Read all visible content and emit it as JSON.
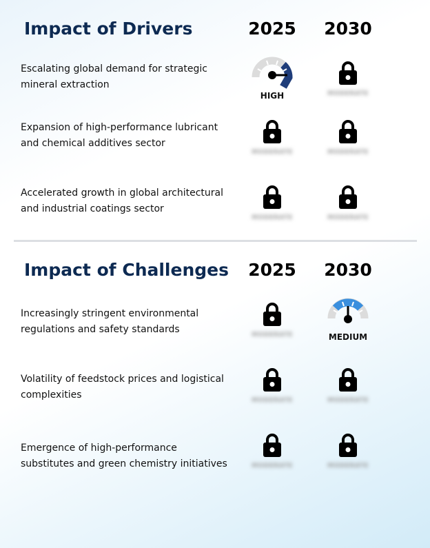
{
  "drivers": {
    "title": "Impact of Drivers",
    "year_1": "2025",
    "year_2": "2030",
    "rows": [
      {
        "text": "Escalating global demand for strategic mineral extraction",
        "cell_2025": {
          "type": "gauge",
          "level": "high",
          "label": "HIGH",
          "color": "#1f3d7a"
        },
        "cell_2030": {
          "type": "locked",
          "label": "MODERATE"
        }
      },
      {
        "text": "Expansion of high-performance lubricant and chemical additives sector",
        "cell_2025": {
          "type": "locked",
          "label": "MODERATE"
        },
        "cell_2030": {
          "type": "locked",
          "label": "MODERATE"
        }
      },
      {
        "text": "Accelerated growth in global architectural and industrial coatings sector",
        "cell_2025": {
          "type": "locked",
          "label": "MODERATE"
        },
        "cell_2030": {
          "type": "locked",
          "label": "MODERATE"
        }
      }
    ]
  },
  "challenges": {
    "title": "Impact of Challenges",
    "year_1": "2025",
    "year_2": "2030",
    "rows": [
      {
        "text": "Increasingly stringent environmental regulations and safety standards",
        "cell_2025": {
          "type": "locked",
          "label": "MODERATE"
        },
        "cell_2030": {
          "type": "gauge",
          "level": "medium",
          "label": "MEDIUM",
          "color": "#3a8fde"
        }
      },
      {
        "text": "Volatility of feedstock prices and logistical complexities",
        "cell_2025": {
          "type": "locked",
          "label": "MODERATE"
        },
        "cell_2030": {
          "type": "locked",
          "label": "MODERATE"
        }
      },
      {
        "text": "Emergence of high-performance substitutes and green chemistry initiatives",
        "cell_2025": {
          "type": "locked",
          "label": "MODERATE"
        },
        "cell_2030": {
          "type": "locked",
          "label": "MODERATE"
        }
      }
    ]
  },
  "colors": {
    "title": "#0d2a52",
    "gauge_track": "#dcdcdc",
    "lock": "#000000"
  }
}
